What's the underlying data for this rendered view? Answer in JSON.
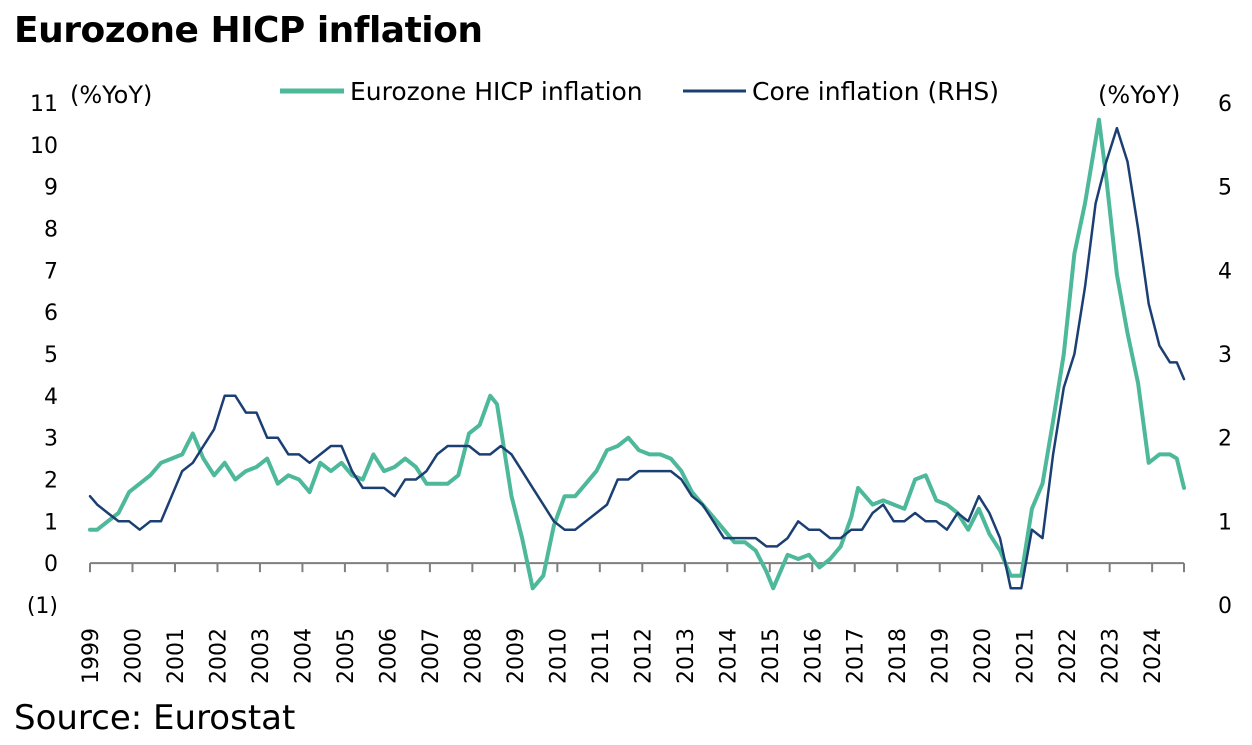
{
  "title": "Eurozone HICP inflation",
  "source": "Source: Eurostat",
  "chart_data": {
    "type": "line",
    "x_unit": "year",
    "left_axis": {
      "unit": "(%YoY)",
      "ticks": [
        {
          "v": -1,
          "label": "(1)"
        },
        {
          "v": 0,
          "label": "0"
        },
        {
          "v": 1,
          "label": "1"
        },
        {
          "v": 2,
          "label": "2"
        },
        {
          "v": 3,
          "label": "3"
        },
        {
          "v": 4,
          "label": "4"
        },
        {
          "v": 5,
          "label": "5"
        },
        {
          "v": 6,
          "label": "6"
        },
        {
          "v": 7,
          "label": "7"
        },
        {
          "v": 8,
          "label": "8"
        },
        {
          "v": 9,
          "label": "9"
        },
        {
          "v": 10,
          "label": "10"
        },
        {
          "v": 11,
          "label": "11"
        }
      ],
      "range": [
        -1,
        11
      ]
    },
    "right_axis": {
      "unit": "(%YoY)",
      "ticks": [
        {
          "v": 0,
          "label": "0"
        },
        {
          "v": 1,
          "label": "1"
        },
        {
          "v": 2,
          "label": "2"
        },
        {
          "v": 3,
          "label": "3"
        },
        {
          "v": 4,
          "label": "4"
        },
        {
          "v": 5,
          "label": "5"
        },
        {
          "v": 6,
          "label": "6"
        }
      ],
      "range": [
        0,
        6
      ]
    },
    "years": [
      "1999",
      "2000",
      "2001",
      "2002",
      "2003",
      "2004",
      "2005",
      "2006",
      "2007",
      "2008",
      "2009",
      "2010",
      "2011",
      "2012",
      "2013",
      "2014",
      "2015",
      "2016",
      "2017",
      "2018",
      "2019",
      "2020",
      "2021",
      "2022",
      "2023",
      "2024"
    ],
    "x_range": [
      1999,
      2024.75
    ],
    "grid": false,
    "legend_position": "top-center",
    "series": [
      {
        "name": "Eurozone HICP inflation",
        "axis": "left",
        "color": "#4db89a",
        "points": [
          [
            1999.0,
            0.8
          ],
          [
            1999.17,
            0.8
          ],
          [
            1999.42,
            1.0
          ],
          [
            1999.67,
            1.2
          ],
          [
            1999.92,
            1.7
          ],
          [
            2000.17,
            1.9
          ],
          [
            2000.42,
            2.1
          ],
          [
            2000.67,
            2.4
          ],
          [
            2000.92,
            2.5
          ],
          [
            2001.17,
            2.6
          ],
          [
            2001.42,
            3.1
          ],
          [
            2001.67,
            2.5
          ],
          [
            2001.92,
            2.1
          ],
          [
            2002.17,
            2.4
          ],
          [
            2002.42,
            2.0
          ],
          [
            2002.67,
            2.2
          ],
          [
            2002.92,
            2.3
          ],
          [
            2003.17,
            2.5
          ],
          [
            2003.42,
            1.9
          ],
          [
            2003.67,
            2.1
          ],
          [
            2003.92,
            2.0
          ],
          [
            2004.17,
            1.7
          ],
          [
            2004.42,
            2.4
          ],
          [
            2004.67,
            2.2
          ],
          [
            2004.92,
            2.4
          ],
          [
            2005.17,
            2.1
          ],
          [
            2005.42,
            2.0
          ],
          [
            2005.67,
            2.6
          ],
          [
            2005.92,
            2.2
          ],
          [
            2006.17,
            2.3
          ],
          [
            2006.42,
            2.5
          ],
          [
            2006.67,
            2.3
          ],
          [
            2006.92,
            1.9
          ],
          [
            2007.17,
            1.9
          ],
          [
            2007.42,
            1.9
          ],
          [
            2007.67,
            2.1
          ],
          [
            2007.92,
            3.1
          ],
          [
            2008.17,
            3.3
          ],
          [
            2008.42,
            4.0
          ],
          [
            2008.58,
            3.8
          ],
          [
            2008.92,
            1.6
          ],
          [
            2009.17,
            0.6
          ],
          [
            2009.42,
            -0.6
          ],
          [
            2009.67,
            -0.3
          ],
          [
            2009.92,
            0.9
          ],
          [
            2010.17,
            1.6
          ],
          [
            2010.42,
            1.6
          ],
          [
            2010.67,
            1.9
          ],
          [
            2010.92,
            2.2
          ],
          [
            2011.17,
            2.7
          ],
          [
            2011.42,
            2.8
          ],
          [
            2011.67,
            3.0
          ],
          [
            2011.92,
            2.7
          ],
          [
            2012.17,
            2.6
          ],
          [
            2012.42,
            2.6
          ],
          [
            2012.67,
            2.5
          ],
          [
            2012.92,
            2.2
          ],
          [
            2013.17,
            1.7
          ],
          [
            2013.42,
            1.4
          ],
          [
            2013.67,
            1.1
          ],
          [
            2013.92,
            0.8
          ],
          [
            2014.17,
            0.5
          ],
          [
            2014.42,
            0.5
          ],
          [
            2014.67,
            0.3
          ],
          [
            2014.92,
            -0.2
          ],
          [
            2015.08,
            -0.6
          ],
          [
            2015.42,
            0.2
          ],
          [
            2015.67,
            0.1
          ],
          [
            2015.92,
            0.2
          ],
          [
            2016.17,
            -0.1
          ],
          [
            2016.42,
            0.1
          ],
          [
            2016.67,
            0.4
          ],
          [
            2016.92,
            1.1
          ],
          [
            2017.08,
            1.8
          ],
          [
            2017.42,
            1.4
          ],
          [
            2017.67,
            1.5
          ],
          [
            2017.92,
            1.4
          ],
          [
            2018.17,
            1.3
          ],
          [
            2018.42,
            2.0
          ],
          [
            2018.67,
            2.1
          ],
          [
            2018.92,
            1.5
          ],
          [
            2019.17,
            1.4
          ],
          [
            2019.42,
            1.2
          ],
          [
            2019.67,
            0.8
          ],
          [
            2019.92,
            1.3
          ],
          [
            2020.17,
            0.7
          ],
          [
            2020.42,
            0.3
          ],
          [
            2020.67,
            -0.3
          ],
          [
            2020.92,
            -0.3
          ],
          [
            2021.17,
            1.3
          ],
          [
            2021.42,
            1.9
          ],
          [
            2021.67,
            3.4
          ],
          [
            2021.92,
            5.0
          ],
          [
            2022.17,
            7.4
          ],
          [
            2022.42,
            8.6
          ],
          [
            2022.75,
            10.6
          ],
          [
            2022.92,
            9.2
          ],
          [
            2023.17,
            6.9
          ],
          [
            2023.42,
            5.5
          ],
          [
            2023.67,
            4.3
          ],
          [
            2023.92,
            2.4
          ],
          [
            2024.17,
            2.6
          ],
          [
            2024.42,
            2.6
          ],
          [
            2024.58,
            2.5
          ],
          [
            2024.75,
            1.8
          ]
        ]
      },
      {
        "name": "Core inflation (RHS)",
        "axis": "right",
        "color": "#1c3f73",
        "points": [
          [
            1999.0,
            1.3
          ],
          [
            1999.17,
            1.2
          ],
          [
            1999.42,
            1.1
          ],
          [
            1999.67,
            1.0
          ],
          [
            1999.92,
            1.0
          ],
          [
            2000.17,
            0.9
          ],
          [
            2000.42,
            1.0
          ],
          [
            2000.67,
            1.0
          ],
          [
            2000.92,
            1.3
          ],
          [
            2001.17,
            1.6
          ],
          [
            2001.42,
            1.7
          ],
          [
            2001.67,
            1.9
          ],
          [
            2001.92,
            2.1
          ],
          [
            2002.17,
            2.5
          ],
          [
            2002.42,
            2.5
          ],
          [
            2002.67,
            2.3
          ],
          [
            2002.92,
            2.3
          ],
          [
            2003.17,
            2.0
          ],
          [
            2003.42,
            2.0
          ],
          [
            2003.67,
            1.8
          ],
          [
            2003.92,
            1.8
          ],
          [
            2004.17,
            1.7
          ],
          [
            2004.42,
            1.8
          ],
          [
            2004.67,
            1.9
          ],
          [
            2004.92,
            1.9
          ],
          [
            2005.17,
            1.6
          ],
          [
            2005.42,
            1.4
          ],
          [
            2005.67,
            1.4
          ],
          [
            2005.92,
            1.4
          ],
          [
            2006.17,
            1.3
          ],
          [
            2006.42,
            1.5
          ],
          [
            2006.67,
            1.5
          ],
          [
            2006.92,
            1.6
          ],
          [
            2007.17,
            1.8
          ],
          [
            2007.42,
            1.9
          ],
          [
            2007.67,
            1.9
          ],
          [
            2007.92,
            1.9
          ],
          [
            2008.17,
            1.8
          ],
          [
            2008.42,
            1.8
          ],
          [
            2008.67,
            1.9
          ],
          [
            2008.92,
            1.8
          ],
          [
            2009.17,
            1.6
          ],
          [
            2009.42,
            1.4
          ],
          [
            2009.67,
            1.2
          ],
          [
            2009.92,
            1.0
          ],
          [
            2010.17,
            0.9
          ],
          [
            2010.42,
            0.9
          ],
          [
            2010.67,
            1.0
          ],
          [
            2010.92,
            1.1
          ],
          [
            2011.17,
            1.2
          ],
          [
            2011.42,
            1.5
          ],
          [
            2011.67,
            1.5
          ],
          [
            2011.92,
            1.6
          ],
          [
            2012.17,
            1.6
          ],
          [
            2012.42,
            1.6
          ],
          [
            2012.67,
            1.6
          ],
          [
            2012.92,
            1.5
          ],
          [
            2013.17,
            1.3
          ],
          [
            2013.42,
            1.2
          ],
          [
            2013.67,
            1.0
          ],
          [
            2013.92,
            0.8
          ],
          [
            2014.17,
            0.8
          ],
          [
            2014.42,
            0.8
          ],
          [
            2014.67,
            0.8
          ],
          [
            2014.92,
            0.7
          ],
          [
            2015.17,
            0.7
          ],
          [
            2015.42,
            0.8
          ],
          [
            2015.67,
            1.0
          ],
          [
            2015.92,
            0.9
          ],
          [
            2016.17,
            0.9
          ],
          [
            2016.42,
            0.8
          ],
          [
            2016.67,
            0.8
          ],
          [
            2016.92,
            0.9
          ],
          [
            2017.17,
            0.9
          ],
          [
            2017.42,
            1.1
          ],
          [
            2017.67,
            1.2
          ],
          [
            2017.92,
            1.0
          ],
          [
            2018.17,
            1.0
          ],
          [
            2018.42,
            1.1
          ],
          [
            2018.67,
            1.0
          ],
          [
            2018.92,
            1.0
          ],
          [
            2019.17,
            0.9
          ],
          [
            2019.42,
            1.1
          ],
          [
            2019.67,
            1.0
          ],
          [
            2019.92,
            1.3
          ],
          [
            2020.17,
            1.1
          ],
          [
            2020.42,
            0.8
          ],
          [
            2020.67,
            0.2
          ],
          [
            2020.92,
            0.2
          ],
          [
            2021.17,
            0.9
          ],
          [
            2021.42,
            0.8
          ],
          [
            2021.67,
            1.8
          ],
          [
            2021.92,
            2.6
          ],
          [
            2022.17,
            3.0
          ],
          [
            2022.42,
            3.8
          ],
          [
            2022.67,
            4.8
          ],
          [
            2022.92,
            5.3
          ],
          [
            2023.17,
            5.7
          ],
          [
            2023.42,
            5.3
          ],
          [
            2023.67,
            4.5
          ],
          [
            2023.92,
            3.6
          ],
          [
            2024.17,
            3.1
          ],
          [
            2024.42,
            2.9
          ],
          [
            2024.58,
            2.9
          ],
          [
            2024.75,
            2.7
          ]
        ]
      }
    ]
  }
}
